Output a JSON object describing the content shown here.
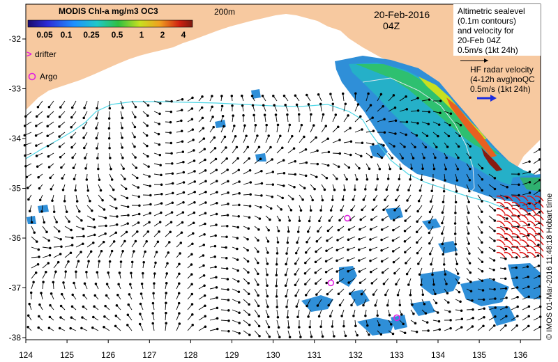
{
  "colorbar": {
    "title": "MODIS Chl-a mg/m3 OC3",
    "ticks": [
      "0.05",
      "0.1",
      "0.25",
      "0.5",
      "1",
      "2",
      "4"
    ]
  },
  "map": {
    "isobath_label": "200m",
    "date": "20-Feb-2016",
    "time": "04Z",
    "x_ticks": [
      "124",
      "125",
      "126",
      "127",
      "128",
      "129",
      "130",
      "131",
      "132",
      "133",
      "134",
      "135",
      "136"
    ],
    "y_ticks": [
      "-32",
      "-33",
      "-34",
      "-35",
      "-36",
      "-37",
      "-38"
    ],
    "credit": "© IMOS 01-Mar-2016 11:48:18 Hobart time"
  },
  "legend": {
    "drifter": "drifter",
    "argo": "Argo",
    "altimetry_lines": [
      "Altimetric sealevel",
      "(0.1m contours)",
      "and velocity for",
      "20-Feb 04Z",
      "0.5m/s (1kt 24h)"
    ],
    "hf_lines": [
      "HF radar velocity",
      "(4-12h avg)noQC",
      "0.5m/s (1kt 24h)"
    ]
  },
  "colors": {
    "land": "#f7c9a0",
    "isobath": "#4dd6e6",
    "argo": "#e020e0",
    "hf_arrow": "#1a2ce0",
    "radar_vectors": "#e01010"
  },
  "argo_floats": [
    {
      "lon": 131.8,
      "lat": -35.6
    },
    {
      "lon": 131.4,
      "lat": -36.9
    },
    {
      "lon": 133.0,
      "lat": -37.6
    }
  ]
}
